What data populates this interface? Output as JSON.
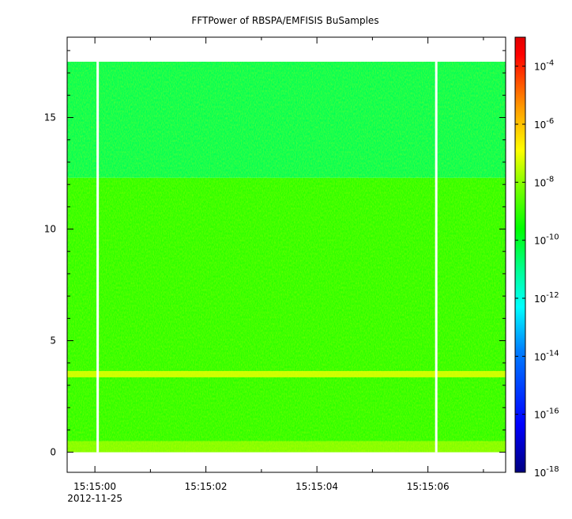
{
  "chart_data": {
    "type": "heatmap",
    "title": "FFTPower of RBSPA/EMFISIS  BuSamples",
    "xlabel": "",
    "ylabel": "",
    "x_date": "2012-11-25",
    "x_ticks": [
      "15:15:00",
      "15:15:02",
      "15:15:04",
      "15:15:06"
    ],
    "x_range_seconds": [
      -0.5,
      7.4
    ],
    "y_ticks": [
      "0",
      "5",
      "10",
      "15"
    ],
    "y_range": [
      -0.9,
      18.6
    ],
    "data_y_range": [
      0,
      17.5
    ],
    "colorbar": {
      "scale": "log",
      "range": [
        1e-18,
        0.001
      ],
      "tick_exponents": [
        "-4",
        "-6",
        "-8",
        "-10",
        "-12",
        "-14",
        "-16",
        "-18"
      ],
      "tick_base": "10",
      "colors": [
        "#00007f",
        "#0000ff",
        "#007fff",
        "#00ffff",
        "#00ff7f",
        "#00ff00",
        "#7fff00",
        "#ffff00",
        "#ff7f00",
        "#ff0000",
        "#7f0000"
      ]
    },
    "data_gaps_seconds": [
      0.05,
      6.15
    ],
    "features": [
      {
        "label": "",
        "y_range": [
          3.1,
          3.9
        ],
        "level_exponent": -7
      },
      {
        "label": "",
        "y_range": [
          0,
          0.5
        ],
        "level_exponent": -9
      },
      {
        "label": "",
        "y_range": [
          0.5,
          12.3
        ],
        "level_exponent": -10
      },
      {
        "label": "",
        "y_range": [
          12.3,
          17.5
        ],
        "level_exponent": -11.5
      }
    ]
  }
}
